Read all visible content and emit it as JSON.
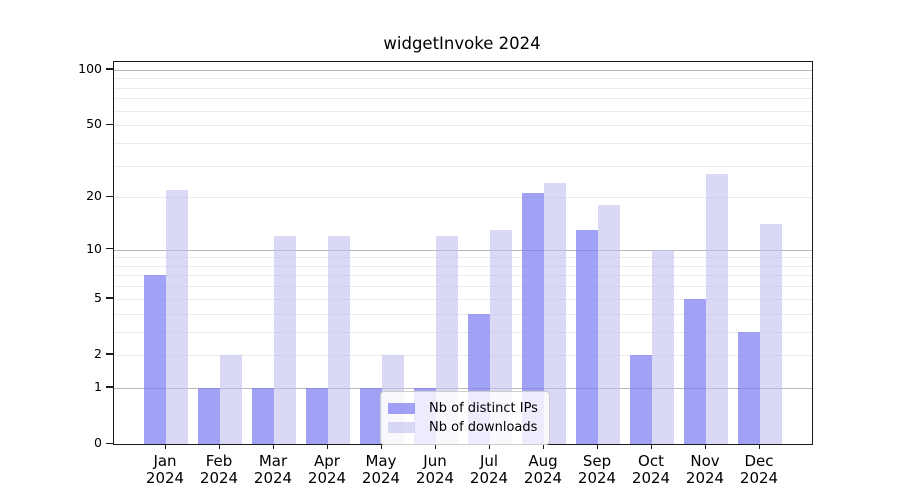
{
  "title": "widgetInvoke 2024",
  "legend": {
    "items": [
      {
        "label": "Nb of distinct IPs",
        "color": "rgba(125,125,242,0.72)"
      },
      {
        "label": "Nb of downloads",
        "color": "rgba(190,190,240,0.58)"
      }
    ]
  },
  "chart_data": {
    "type": "bar",
    "title": "widgetInvoke 2024",
    "categories": [
      "Jan",
      "Feb",
      "Mar",
      "Apr",
      "May",
      "Jun",
      "Jul",
      "Aug",
      "Sep",
      "Oct",
      "Nov",
      "Dec"
    ],
    "category_year_line": "2024",
    "series": [
      {
        "name": "Nb of distinct IPs",
        "color": "rgba(125,125,242,0.72)",
        "values": [
          7,
          1,
          1,
          1,
          1,
          1,
          4,
          21,
          13,
          2,
          5,
          3
        ]
      },
      {
        "name": "Nb of downloads",
        "color": "rgba(190,190,240,0.58)",
        "values": [
          22,
          2,
          12,
          12,
          2,
          12,
          13,
          24,
          18,
          10,
          27,
          14
        ]
      }
    ],
    "xlabel": "",
    "ylabel": "",
    "yscale": "log1p",
    "ylim": [
      0,
      110
    ],
    "yticks": [
      0,
      1,
      2,
      5,
      10,
      20,
      50,
      100
    ],
    "grid": {
      "major": [
        1,
        10,
        100
      ],
      "minor": [
        2,
        3,
        4,
        5,
        6,
        7,
        8,
        9,
        20,
        30,
        40,
        50,
        60,
        70,
        80,
        90
      ]
    },
    "legend_position": "lower center",
    "grid_on": true
  }
}
